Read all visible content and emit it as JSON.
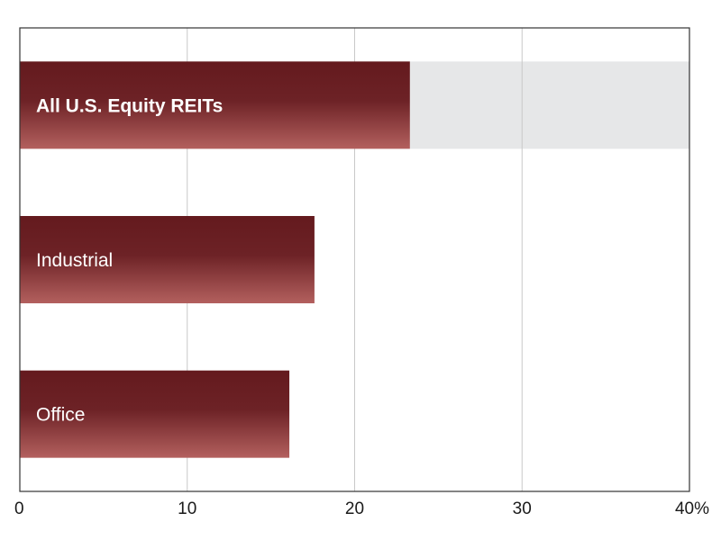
{
  "chart_data": {
    "type": "bar",
    "orientation": "horizontal",
    "categories": [
      "All U.S. Equity REITs",
      "Industrial",
      "Office"
    ],
    "values": [
      23.3,
      17.6,
      16.1
    ],
    "highlight_category": "All U.S. Equity REITs",
    "title": "",
    "xlabel": "",
    "ylabel": "",
    "xlim": [
      0,
      40
    ],
    "x_ticks": [
      "0",
      "10",
      "20",
      "30",
      "40%"
    ],
    "grid": "vertical",
    "legend": "none",
    "colors": {
      "bar_top": "#641a1e",
      "bar_bottom": "#b3605e",
      "highlight_band": "#e6e7e8",
      "grid": "#c8c8c8",
      "frame": "#333333"
    }
  }
}
